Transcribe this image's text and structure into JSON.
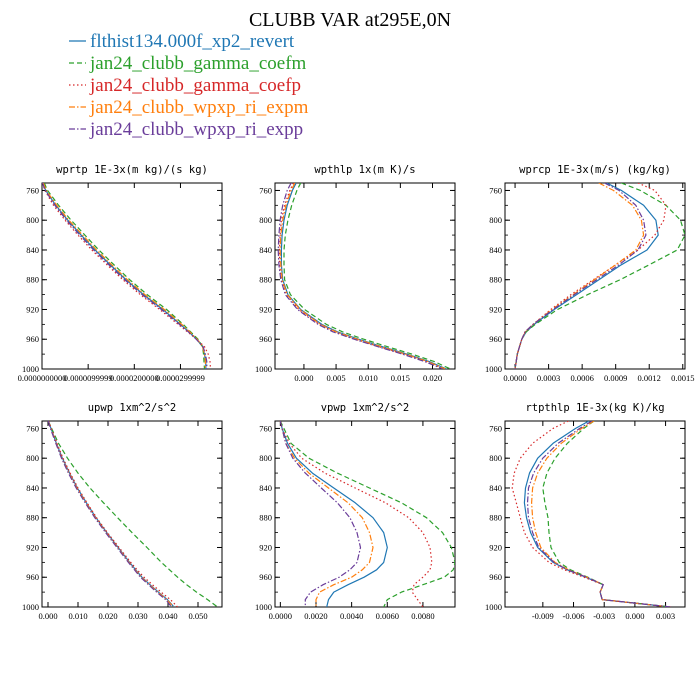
{
  "title": "CLUBB VAR at295E,0N",
  "legend": [
    {
      "name": "flthist134.000f_xp2_revert",
      "color": "#1f77b4",
      "dash": "solid"
    },
    {
      "name": "jan24_clubb_gamma_coefm",
      "color": "#2ca02c",
      "dash": "dash"
    },
    {
      "name": "jan24_clubb_gamma_coefp",
      "color": "#d62728",
      "dash": "dot"
    },
    {
      "name": "jan24_clubb_wpxp_ri_expm",
      "color": "#ff7f0e",
      "dash": "dashdot"
    },
    {
      "name": "jan24_clubb_wpxp_ri_expp",
      "color": "#6a3d9a",
      "dash": "dashdot"
    }
  ],
  "chart_data": [
    {
      "type": "line",
      "title": "wprtp  1E-3x(m kg)/(s kg)",
      "xlim": [
        0.0,
        3.9e-05
      ],
      "ylim": [
        1000,
        750
      ],
      "xticks": [
        0.0,
        1e-05,
        2e-05,
        3e-05
      ],
      "xtick_labels": [
        "0.0000000000",
        "0.0000099999",
        "0.0000200000",
        "0.0000299999"
      ],
      "yticks": [
        760,
        800,
        840,
        880,
        920,
        960,
        1000
      ],
      "y": [
        750,
        760,
        780,
        800,
        820,
        840,
        860,
        880,
        900,
        920,
        940,
        950,
        960,
        970,
        980,
        990,
        1000
      ],
      "series": [
        {
          "name": "flthist134.000f_xp2_revert",
          "x": [
            2e-07,
            8e-07,
            3e-06,
            5.6e-06,
            8.5e-06,
            1.15e-05,
            1.48e-05,
            1.82e-05,
            2.2e-05,
            2.62e-05,
            3e-05,
            3.18e-05,
            3.35e-05,
            3.48e-05,
            3.52e-05,
            3.55e-05,
            3.55e-05
          ]
        },
        {
          "name": "jan24_clubb_gamma_coefm",
          "x": [
            5e-07,
            1.2e-06,
            3.6e-06,
            6.3e-06,
            9.3e-06,
            1.23e-05,
            1.56e-05,
            1.9e-05,
            2.28e-05,
            2.7e-05,
            3.06e-05,
            3.22e-05,
            3.38e-05,
            3.48e-05,
            3.5e-05,
            3.51e-05,
            3.52e-05
          ]
        },
        {
          "name": "jan24_clubb_gamma_coefp",
          "x": [
            1e-07,
            6e-07,
            2.5e-06,
            5e-06,
            7.8e-06,
            1.08e-05,
            1.41e-05,
            1.75e-05,
            2.13e-05,
            2.55e-05,
            2.95e-05,
            3.15e-05,
            3.35e-05,
            3.52e-05,
            3.6e-05,
            3.64e-05,
            3.65e-05
          ]
        },
        {
          "name": "jan24_clubb_wpxp_ri_expm",
          "x": [
            3e-07,
            9e-07,
            3.2e-06,
            5.8e-06,
            8.8e-06,
            1.18e-05,
            1.51e-05,
            1.85e-05,
            2.23e-05,
            2.65e-05,
            3.03e-05,
            3.2e-05,
            3.36e-05,
            3.48e-05,
            3.52e-05,
            3.54e-05,
            3.54e-05
          ]
        },
        {
          "name": "jan24_clubb_wpxp_ri_expp",
          "x": [
            1e-07,
            7e-07,
            2.8e-06,
            5.3e-06,
            8.2e-06,
            1.12e-05,
            1.45e-05,
            1.79e-05,
            2.17e-05,
            2.59e-05,
            2.98e-05,
            3.17e-05,
            3.34e-05,
            3.49e-05,
            3.54e-05,
            3.57e-05,
            3.57e-05
          ]
        }
      ]
    },
    {
      "type": "line",
      "title": "wpthlp  1x(m K)/s",
      "xlim": [
        -0.0045,
        0.0235
      ],
      "ylim": [
        1000,
        750
      ],
      "xticks": [
        0.0,
        0.005,
        0.01,
        0.015,
        0.02
      ],
      "xtick_labels": [
        "0.000",
        "0.005",
        "0.010",
        "0.015",
        "0.020"
      ],
      "yticks": [
        760,
        800,
        840,
        880,
        920,
        960,
        1000
      ],
      "y": [
        750,
        760,
        780,
        800,
        820,
        840,
        860,
        880,
        900,
        920,
        940,
        950,
        960,
        970,
        980,
        990,
        1000
      ],
      "series": [
        {
          "name": "flthist134.000f_xp2_revert",
          "x": [
            -0.0012,
            -0.0018,
            -0.0026,
            -0.0031,
            -0.0034,
            -0.0035,
            -0.0035,
            -0.0033,
            -0.0025,
            -0.0005,
            0.0028,
            0.0052,
            0.0085,
            0.0122,
            0.016,
            0.0195,
            0.0222
          ]
        },
        {
          "name": "jan24_clubb_gamma_coefm",
          "x": [
            -0.0005,
            -0.0011,
            -0.0019,
            -0.0025,
            -0.0029,
            -0.0031,
            -0.0031,
            -0.003,
            -0.0021,
            0.0001,
            0.0035,
            0.006,
            0.0093,
            0.013,
            0.0168,
            0.0203,
            0.0228
          ]
        },
        {
          "name": "jan24_clubb_gamma_coefp",
          "x": [
            -0.0016,
            -0.0022,
            -0.003,
            -0.0035,
            -0.0037,
            -0.0038,
            -0.0038,
            -0.0035,
            -0.0027,
            -0.0008,
            0.0024,
            0.0047,
            0.008,
            0.0117,
            0.0155,
            0.019,
            0.0218
          ]
        },
        {
          "name": "jan24_clubb_wpxp_ri_expm",
          "x": [
            -0.0014,
            -0.002,
            -0.0028,
            -0.0033,
            -0.0036,
            -0.0037,
            -0.0036,
            -0.0034,
            -0.0026,
            -0.0006,
            0.0026,
            0.005,
            0.0083,
            0.012,
            0.0158,
            0.0193,
            0.022
          ]
        },
        {
          "name": "jan24_clubb_wpxp_ri_expp",
          "x": [
            -0.002,
            -0.0026,
            -0.0033,
            -0.0037,
            -0.0039,
            -0.004,
            -0.0039,
            -0.0036,
            -0.0029,
            -0.001,
            0.0022,
            0.0045,
            0.0078,
            0.0115,
            0.0153,
            0.0188,
            0.0216
          ]
        }
      ]
    },
    {
      "type": "line",
      "title": "wprcp  1E-3x(m/s) (kg/kg)",
      "xlim": [
        -9e-05,
        0.00152
      ],
      "ylim": [
        1000,
        750
      ],
      "xticks": [
        0.0,
        0.0003,
        0.0006,
        0.0009,
        0.0012,
        0.0015
      ],
      "xtick_labels": [
        "0.0000",
        "0.0003",
        "0.0006",
        "0.0009",
        "0.0012",
        "0.0015"
      ],
      "yticks": [
        760,
        800,
        840,
        880,
        920,
        960,
        1000
      ],
      "y": [
        750,
        760,
        780,
        800,
        820,
        840,
        860,
        880,
        900,
        920,
        940,
        950,
        960,
        970,
        980,
        990,
        1000
      ],
      "series": [
        {
          "name": "flthist134.000f_xp2_revert",
          "x": [
            0.00082,
            0.00095,
            0.00115,
            0.00126,
            0.00128,
            0.00118,
            0.00095,
            0.00075,
            0.00055,
            0.00035,
            0.00017,
            0.0001,
            6e-05,
            4e-05,
            2e-05,
            1e-05,
            0.0
          ]
        },
        {
          "name": "jan24_clubb_gamma_coefm",
          "x": [
            0.00095,
            0.00112,
            0.00135,
            0.00148,
            0.00152,
            0.00145,
            0.0012,
            0.00094,
            0.00065,
            0.00038,
            0.00018,
            0.0001,
            6e-05,
            4e-05,
            2e-05,
            1e-05,
            0.0
          ]
        },
        {
          "name": "jan24_clubb_gamma_coefp",
          "x": [
            0.0011,
            0.00125,
            0.00135,
            0.00133,
            0.00125,
            0.0011,
            0.0009,
            0.0007,
            0.0005,
            0.00032,
            0.00016,
            9e-05,
            6e-05,
            4e-05,
            2e-05,
            1e-05,
            0.0
          ]
        },
        {
          "name": "jan24_clubb_wpxp_ri_expm",
          "x": [
            0.00075,
            0.00088,
            0.00105,
            0.00113,
            0.00115,
            0.00108,
            0.0009,
            0.00071,
            0.00052,
            0.00033,
            0.00016,
            9e-05,
            6e-05,
            4e-05,
            2e-05,
            1e-05,
            0.0
          ]
        },
        {
          "name": "jan24_clubb_wpxp_ri_expp",
          "x": [
            0.0008,
            0.00093,
            0.00108,
            0.00115,
            0.00117,
            0.0011,
            0.00093,
            0.00073,
            0.00053,
            0.00034,
            0.00016,
            9e-05,
            6e-05,
            4e-05,
            2e-05,
            1e-05,
            0.0
          ]
        }
      ]
    },
    {
      "type": "line",
      "title": "upwp  1xm^2/s^2",
      "xlim": [
        -0.002,
        0.058
      ],
      "ylim": [
        1000,
        750
      ],
      "xticks": [
        0.0,
        0.01,
        0.02,
        0.03,
        0.04,
        0.05
      ],
      "xtick_labels": [
        "0.000",
        "0.010",
        "0.020",
        "0.030",
        "0.040",
        "0.050"
      ],
      "yticks": [
        760,
        800,
        840,
        880,
        920,
        960,
        1000
      ],
      "y": [
        750,
        760,
        780,
        800,
        820,
        840,
        860,
        880,
        900,
        920,
        940,
        950,
        960,
        970,
        980,
        990,
        1000
      ],
      "series": [
        {
          "name": "flthist134.000f_xp2_revert",
          "x": [
            0.0001,
            0.001,
            0.0028,
            0.0048,
            0.0072,
            0.0098,
            0.0128,
            0.016,
            0.0196,
            0.0234,
            0.0272,
            0.0292,
            0.0313,
            0.034,
            0.0368,
            0.0398,
            0.042
          ]
        },
        {
          "name": "jan24_clubb_gamma_coefm",
          "x": [
            0.0001,
            0.0012,
            0.0035,
            0.0065,
            0.01,
            0.014,
            0.0185,
            0.0232,
            0.028,
            0.033,
            0.0378,
            0.0405,
            0.0432,
            0.0462,
            0.0495,
            0.0532,
            0.0565
          ]
        },
        {
          "name": "jan24_clubb_gamma_coefp",
          "x": [
            0.0002,
            0.0011,
            0.003,
            0.005,
            0.0074,
            0.01,
            0.013,
            0.0162,
            0.0198,
            0.0237,
            0.0276,
            0.0297,
            0.032,
            0.0348,
            0.0377,
            0.0408,
            0.0432
          ]
        },
        {
          "name": "jan24_clubb_wpxp_ri_expm",
          "x": [
            0.0001,
            0.0009,
            0.0027,
            0.0046,
            0.007,
            0.0096,
            0.0126,
            0.0158,
            0.0194,
            0.0232,
            0.027,
            0.029,
            0.0311,
            0.0338,
            0.0366,
            0.0396,
            0.0418
          ]
        },
        {
          "name": "jan24_clubb_wpxp_ri_expp",
          "x": [
            0.0001,
            0.0008,
            0.0026,
            0.0045,
            0.0068,
            0.0094,
            0.0124,
            0.0156,
            0.0192,
            0.023,
            0.0268,
            0.0288,
            0.0308,
            0.0335,
            0.0362,
            0.0392,
            0.0412
          ]
        }
      ]
    },
    {
      "type": "line",
      "title": "vpwp  1xm^2/s^2",
      "xlim": [
        -0.0003,
        0.0098
      ],
      "ylim": [
        1000,
        750
      ],
      "xticks": [
        0.0,
        0.002,
        0.004,
        0.006,
        0.008
      ],
      "xtick_labels": [
        "0.0000",
        "0.0020",
        "0.0040",
        "0.0060",
        "0.0080"
      ],
      "yticks": [
        760,
        800,
        840,
        880,
        920,
        960,
        1000
      ],
      "y": [
        750,
        760,
        780,
        800,
        820,
        840,
        860,
        880,
        900,
        920,
        940,
        950,
        960,
        970,
        980,
        990,
        1000
      ],
      "series": [
        {
          "name": "flthist134.000f_xp2_revert",
          "x": [
            0.0,
            0.0001,
            0.0004,
            0.0009,
            0.0018,
            0.003,
            0.0042,
            0.0052,
            0.0058,
            0.006,
            0.0058,
            0.0054,
            0.0047,
            0.0038,
            0.003,
            0.0027,
            0.0026
          ]
        },
        {
          "name": "jan24_clubb_gamma_coefm",
          "x": [
            0.0,
            0.0002,
            0.0006,
            0.0016,
            0.0032,
            0.005,
            0.0068,
            0.0082,
            0.0091,
            0.0096,
            0.0098,
            0.0097,
            0.0092,
            0.008,
            0.0068,
            0.006,
            0.0058
          ]
        },
        {
          "name": "jan24_clubb_gamma_coefp",
          "x": [
            0.0,
            0.0001,
            0.0005,
            0.0012,
            0.0025,
            0.0042,
            0.0059,
            0.0072,
            0.008,
            0.0084,
            0.0085,
            0.0084,
            0.008,
            0.0075,
            0.0074,
            0.0077,
            0.008
          ]
        },
        {
          "name": "jan24_clubb_wpxp_ri_expm",
          "x": [
            0.0,
            0.0001,
            0.0003,
            0.0008,
            0.0016,
            0.0027,
            0.0038,
            0.0046,
            0.005,
            0.0052,
            0.005,
            0.0046,
            0.004,
            0.003,
            0.0022,
            0.002,
            0.002
          ]
        },
        {
          "name": "jan24_clubb_wpxp_ri_expp",
          "x": [
            0.0,
            0.0001,
            0.0003,
            0.0007,
            0.0014,
            0.0023,
            0.0032,
            0.0039,
            0.0043,
            0.0045,
            0.0043,
            0.0039,
            0.0033,
            0.0024,
            0.0017,
            0.0014,
            0.0014
          ]
        }
      ]
    },
    {
      "type": "line",
      "title": "rtpthlp  1E-3x(kg K)/kg",
      "xlim": [
        -0.0127,
        0.0049
      ],
      "ylim": [
        1000,
        750
      ],
      "xticks": [
        -0.009,
        -0.006,
        -0.003,
        0.0,
        0.003
      ],
      "xtick_labels": [
        "-0.009",
        "-0.006",
        "-0.003",
        "0.000",
        "0.003"
      ],
      "yticks": [
        760,
        800,
        840,
        880,
        920,
        960,
        1000
      ],
      "y": [
        750,
        760,
        780,
        800,
        820,
        840,
        860,
        880,
        900,
        920,
        940,
        950,
        960,
        970,
        980,
        990,
        1000
      ],
      "series": [
        {
          "name": "flthist134.000f_xp2_revert",
          "x": [
            -0.0045,
            -0.0058,
            -0.008,
            -0.0095,
            -0.0103,
            -0.0107,
            -0.0108,
            -0.0106,
            -0.0102,
            -0.0095,
            -0.008,
            -0.0066,
            -0.0048,
            -0.0031,
            -0.0034,
            -0.0032,
            0.0035
          ]
        },
        {
          "name": "jan24_clubb_gamma_coefm",
          "x": [
            -0.004,
            -0.005,
            -0.0066,
            -0.0078,
            -0.0086,
            -0.009,
            -0.0088,
            -0.0085,
            -0.0084,
            -0.0082,
            -0.0074,
            -0.0063,
            -0.0046,
            -0.0031,
            -0.0034,
            -0.0032,
            0.0035
          ]
        },
        {
          "name": "jan24_clubb_gamma_coefp",
          "x": [
            -0.0065,
            -0.008,
            -0.01,
            -0.0112,
            -0.0118,
            -0.012,
            -0.0116,
            -0.0112,
            -0.0108,
            -0.01,
            -0.0084,
            -0.0069,
            -0.005,
            -0.0031,
            -0.0034,
            -0.0032,
            0.0035
          ]
        },
        {
          "name": "jan24_clubb_wpxp_ri_expm",
          "x": [
            -0.004,
            -0.0052,
            -0.0072,
            -0.0086,
            -0.0095,
            -0.01,
            -0.0101,
            -0.01,
            -0.0097,
            -0.0092,
            -0.0078,
            -0.0065,
            -0.0047,
            -0.0031,
            -0.0034,
            -0.0032,
            0.0035
          ]
        },
        {
          "name": "jan24_clubb_wpxp_ri_expp",
          "x": [
            -0.0042,
            -0.0054,
            -0.0075,
            -0.009,
            -0.0099,
            -0.0104,
            -0.0105,
            -0.0104,
            -0.01,
            -0.0094,
            -0.0079,
            -0.0066,
            -0.0047,
            -0.0031,
            -0.0034,
            -0.0032,
            0.0035
          ]
        }
      ]
    }
  ]
}
